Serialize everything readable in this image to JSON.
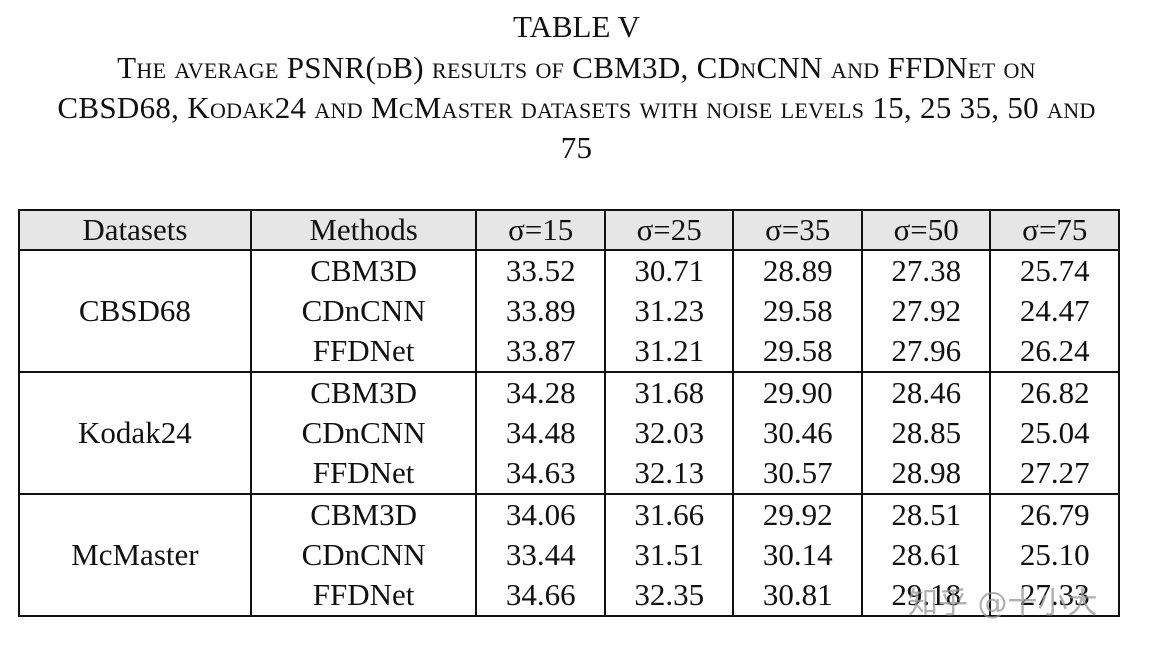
{
  "title": "TABLE V",
  "caption": "The average PSNR(dB) results of CBM3D, CDnCNN and FFDNet on CBSD68, Kodak24 and McMaster datasets with noise levels 15, 25 35, 50 and 75",
  "table": {
    "header": [
      "Datasets",
      "Methods",
      "σ=15",
      "σ=25",
      "σ=35",
      "σ=50",
      "σ=75"
    ],
    "groups": [
      {
        "dataset": "CBSD68",
        "rows": [
          {
            "method": "CBM3D",
            "values": [
              "33.52",
              "30.71",
              "28.89",
              "27.38",
              "25.74"
            ]
          },
          {
            "method": "CDnCNN",
            "values": [
              "33.89",
              "31.23",
              "29.58",
              "27.92",
              "24.47"
            ]
          },
          {
            "method": "FFDNet",
            "values": [
              "33.87",
              "31.21",
              "29.58",
              "27.96",
              "26.24"
            ]
          }
        ]
      },
      {
        "dataset": "Kodak24",
        "rows": [
          {
            "method": "CBM3D",
            "values": [
              "34.28",
              "31.68",
              "29.90",
              "28.46",
              "26.82"
            ]
          },
          {
            "method": "CDnCNN",
            "values": [
              "34.48",
              "32.03",
              "30.46",
              "28.85",
              "25.04"
            ]
          },
          {
            "method": "FFDNet",
            "values": [
              "34.63",
              "32.13",
              "30.57",
              "28.98",
              "27.27"
            ]
          }
        ]
      },
      {
        "dataset": "McMaster",
        "rows": [
          {
            "method": "CBM3D",
            "values": [
              "34.06",
              "31.66",
              "29.92",
              "28.51",
              "26.79"
            ]
          },
          {
            "method": "CDnCNN",
            "values": [
              "33.44",
              "31.51",
              "30.14",
              "28.61",
              "25.10"
            ]
          },
          {
            "method": "FFDNet",
            "values": [
              "34.66",
              "32.35",
              "30.81",
              "29.18",
              "27.33"
            ]
          }
        ]
      }
    ]
  },
  "watermark": "知乎 @十小大"
}
